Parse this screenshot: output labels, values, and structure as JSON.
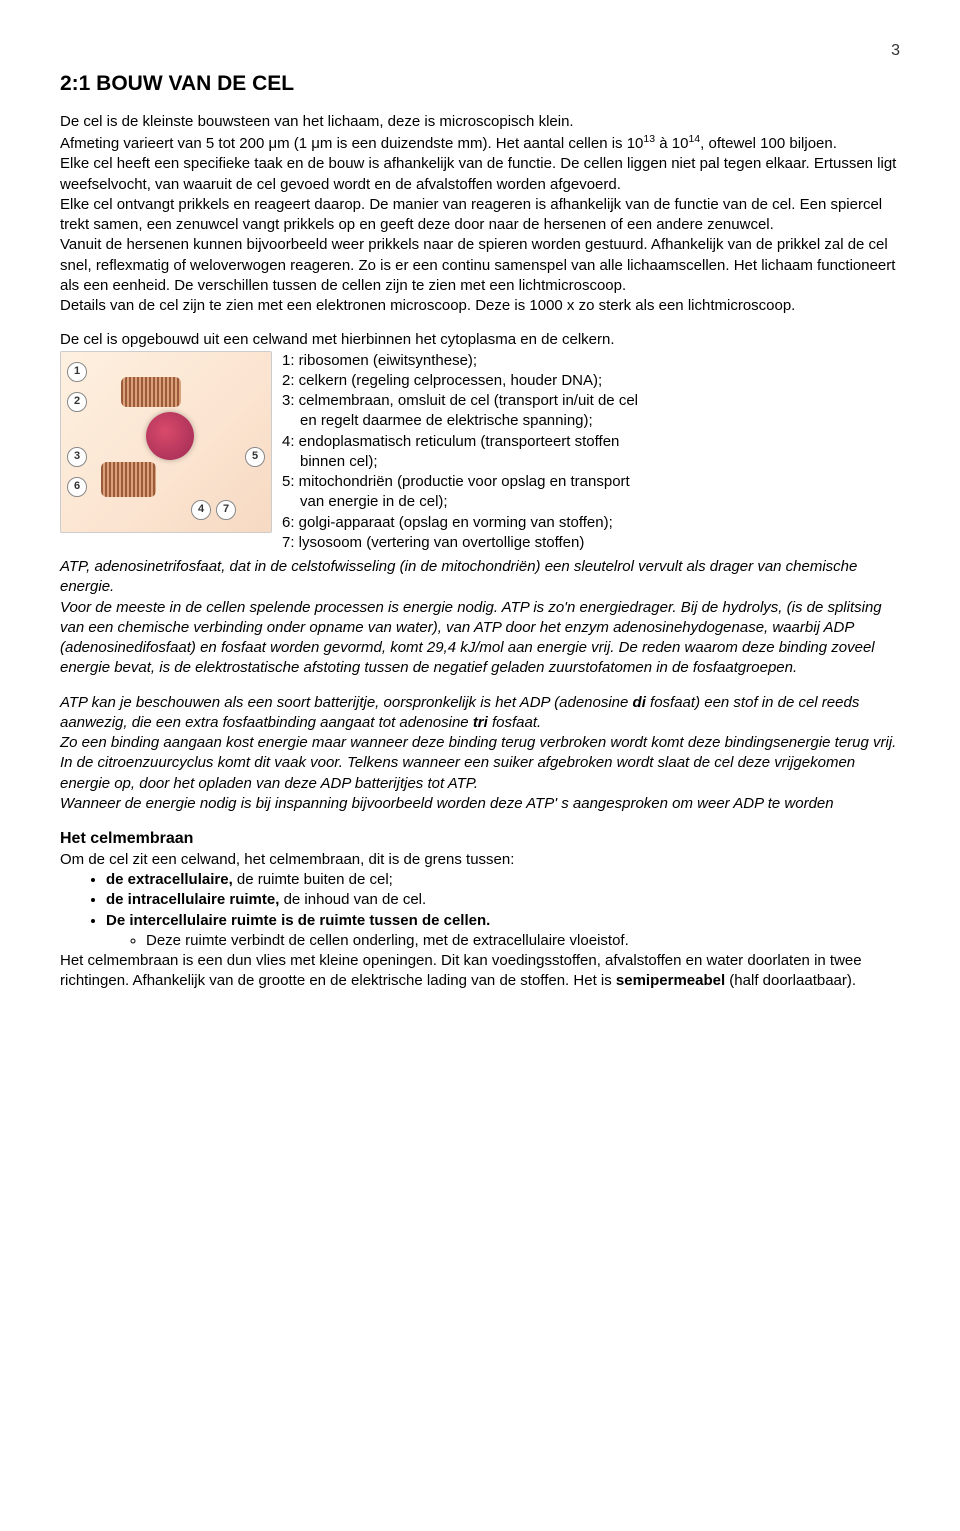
{
  "page_number": "3",
  "title": "2:1 BOUW VAN DE CEL",
  "para1_html": "De cel is de kleinste bouwsteen van het lichaam, deze is microscopisch klein.<br>Afmeting varieert van 5 tot 200 μm (1 μm is een duizendste mm). Het aantal cellen is 10<sup>13</sup> à 10<sup>14</sup>, oftewel 100 biljoen.<br>Elke cel heeft een specifieke taak en de bouw is afhankelijk van de functie. De cellen liggen niet pal tegen elkaar. Ertussen ligt weefselvocht, van waaruit de cel gevoed wordt en de afvalstoffen worden afgevoerd.<br>Elke cel ontvangt prikkels en reageert daarop. De manier van reageren is afhankelijk van de functie van de cel. Een spiercel trekt samen, een zenuwcel vangt prikkels op en geeft deze door naar de hersenen of een andere zenuwcel.<br>Vanuit de hersenen kunnen bijvoorbeeld weer prikkels naar de spieren worden gestuurd. Afhankelijk van de prikkel zal de cel snel, reflexmatig of weloverwogen reageren. Zo is er een continu samenspel van alle lichaamscellen. Het lichaam functioneert als een eenheid. De verschillen tussen de cellen zijn te zien met een lichtmicroscoop.<br>Details van de cel zijn te zien met een elektronen microscoop. Deze is 1000 x zo sterk als een lichtmicroscoop.",
  "para2": "De  cel is opgebouwd uit een celwand met hierbinnen het cytoplasma en de celkern.",
  "cell_labels": [
    "1",
    "2",
    "3",
    "4",
    "5",
    "6",
    "7"
  ],
  "cell_items": {
    "i1": "1: ribosomen (eiwitsynthese);",
    "i2": "2: celkern (regeling celprocessen, houder DNA);",
    "i3a": "3: celmembraan, omsluit de cel (transport in/uit de cel",
    "i3b": "en regelt daarmee de elektrische spanning);",
    "i4a": "4: endoplasmatisch reticulum (transporteert stoffen",
    "i4b": "binnen cel);",
    "i5a": "5: mitochondriën (productie voor opslag en transport",
    "i5b": "van energie in de cel);",
    "i6": "6: golgi-apparaat (opslag en vorming van stoffen);",
    "i7": "7: lysosoom (vertering van overtollige stoffen)"
  },
  "para3_html": "ATP, adenosinetrifosfaat, dat in de celstofwisseling (in de mitochondriën) een sleutelrol vervult als drager van chemische energie.<br>Voor de meeste in de cellen spelende processen is energie nodig. ATP is zo'n energiedrager. Bij de hydrolys, (is de splitsing van een chemische verbinding onder opname van water), van ATP door het enzym adenosinehydogenase, waarbij ADP (adenosinedifosfaat) en fosfaat worden gevormd, komt 29,4 kJ/mol aan energie vrij. De reden waarom deze binding zoveel energie bevat, is de elektrostatische afstoting tussen de negatief geladen zuurstofatomen in de fosfaatgroepen.",
  "para4_html": "ATP kan je beschouwen als een soort batterijtje, oorspronkelijk is het ADP (adenosine <b>di</b> fosfaat) een stof in de cel reeds aanwezig, die een extra fosfaatbinding aangaat tot adenosine <b>tri</b> fosfaat.<br>Zo een binding aangaan kost energie maar wanneer deze binding terug verbroken wordt komt deze bindingsenergie terug vrij.<br>In de citroenzuurcyclus komt dit vaak voor. Telkens wanneer een suiker afgebroken wordt slaat de cel deze vrijgekomen energie op, door het opladen van deze ADP batterijtjes tot ATP.<br>Wanneer de energie nodig is bij inspanning bijvoorbeeld worden deze ATP' s aangesproken om weer ADP te worden",
  "membrane": {
    "heading": "Het celmembraan",
    "intro": "Om de cel zit een celwand, het celmembraan, dit is de grens tussen:",
    "b1_html": "<b>de extracellulaire,</b> de ruimte buiten de cel;",
    "b2_html": "<b>de intracellulaire ruimte,</b> de inhoud van de cel.",
    "b3_html": "<b>De intercellulaire ruimte is de ruimte tussen de cellen.</b>",
    "sub": "Deze ruimte verbindt de cellen onderling, met de extracellulaire vloeistof.",
    "outro_html": "Het celmembraan is een dun vlies met kleine openingen. Dit kan voedingsstoffen, afvalstoffen en water doorlaten in twee richtingen.  Afhankelijk van de grootte en de elektrische lading van de stoffen.  Het is <b>semipermeabel</b> (half doorlaatbaar)."
  }
}
